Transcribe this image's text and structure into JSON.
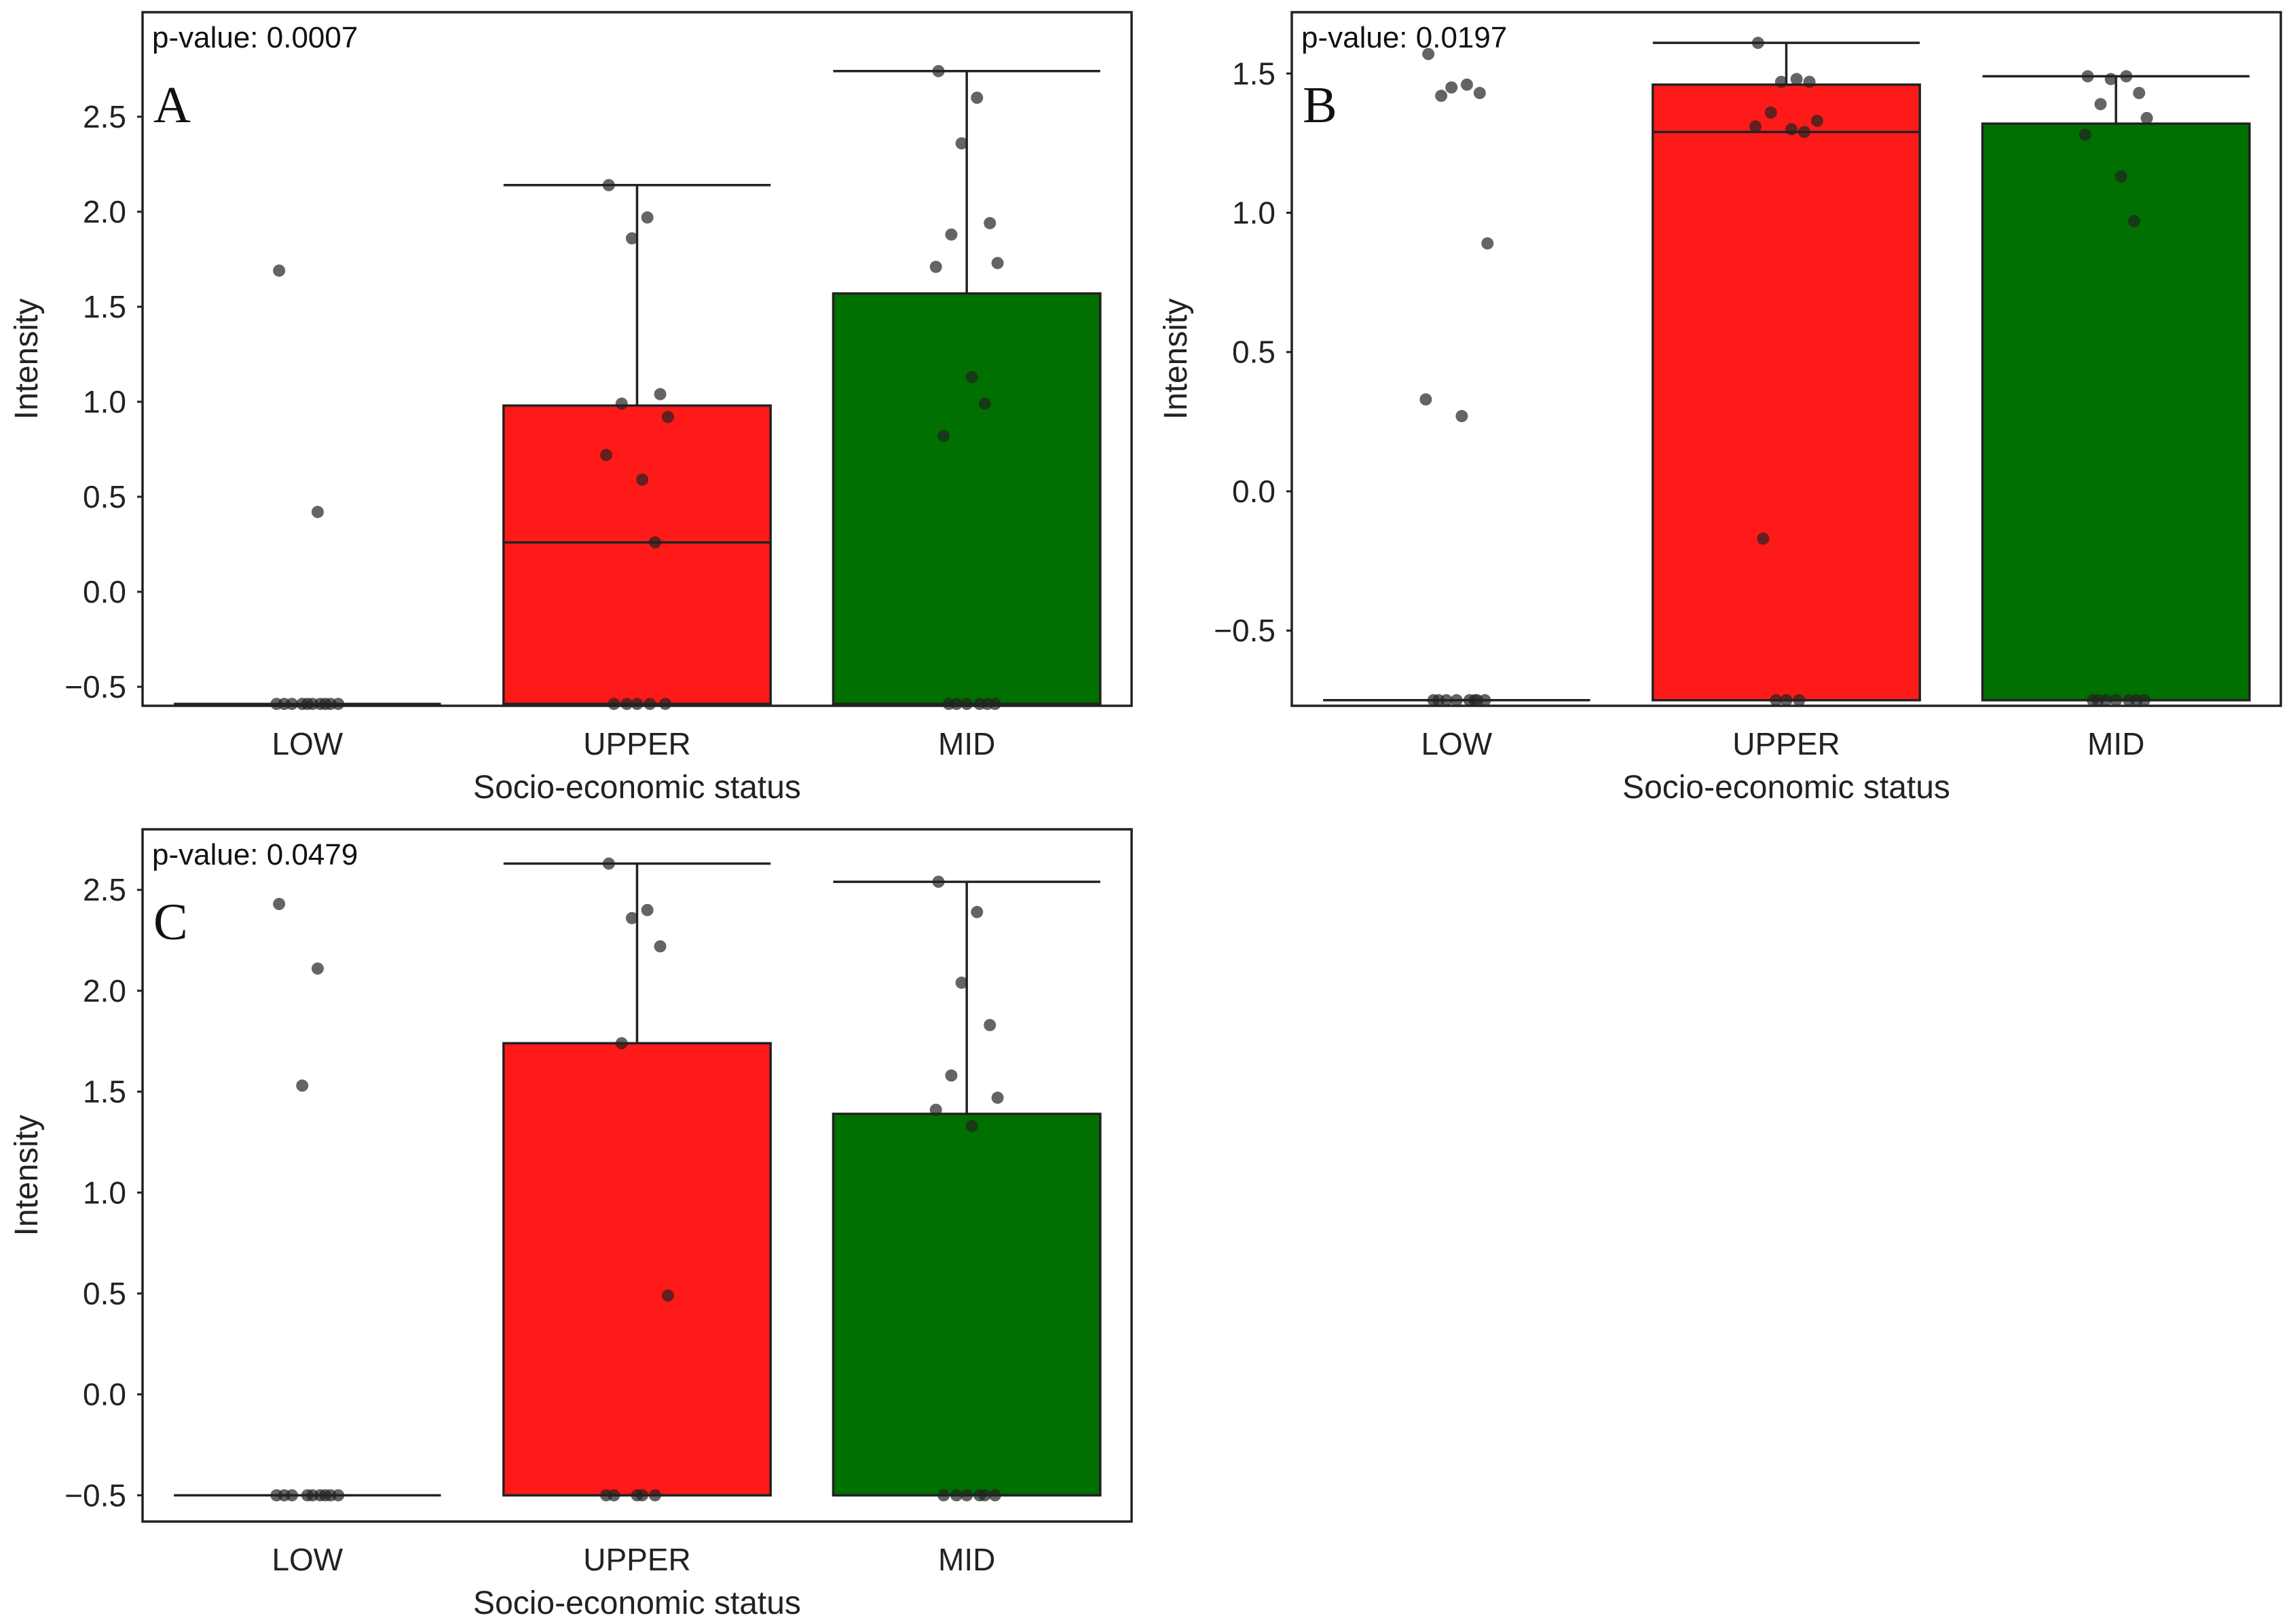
{
  "chart_data": [
    {
      "type": "box",
      "panel_label": "A",
      "annotation": "p-value: 0.0007",
      "xlabel": "Socio-economic status",
      "ylabel": "Intensity",
      "categories": [
        "LOW",
        "UPPER",
        "MID"
      ],
      "ylim": [
        -0.6,
        3.05
      ],
      "yticks": [
        -0.5,
        0.0,
        0.5,
        1.0,
        1.5,
        2.0,
        2.5
      ],
      "ytick_labels": [
        "−0.5",
        "0.0",
        "0.5",
        "1.0",
        "1.5",
        "2.0",
        "2.5"
      ],
      "boxes": [
        {
          "category": "LOW",
          "color": "#ff0000",
          "q1": -0.59,
          "median": -0.59,
          "q3": -0.59,
          "whisker_low": -0.59,
          "whisker_high": -0.59
        },
        {
          "category": "UPPER",
          "color": "#ff0000",
          "q1": -0.59,
          "median": 0.26,
          "q3": 0.98,
          "whisker_low": -0.59,
          "whisker_high": 2.14
        },
        {
          "category": "MID",
          "color": "#006400",
          "q1": -0.59,
          "median": -0.59,
          "q3": 1.57,
          "whisker_low": -0.59,
          "whisker_high": 2.74
        }
      ],
      "points": [
        {
          "category": "LOW",
          "values": [
            1.69,
            0.42,
            -0.59,
            -0.59,
            -0.59,
            -0.59,
            -0.59,
            -0.59,
            -0.59,
            -0.59,
            -0.59,
            -0.59
          ]
        },
        {
          "category": "UPPER",
          "values": [
            2.14,
            1.97,
            1.86,
            1.04,
            0.99,
            0.92,
            0.72,
            0.59,
            0.26,
            -0.59,
            -0.59,
            -0.59,
            -0.59,
            -0.59
          ]
        },
        {
          "category": "MID",
          "values": [
            2.74,
            2.6,
            2.36,
            1.94,
            1.88,
            1.73,
            1.71,
            1.13,
            0.99,
            0.82,
            -0.59,
            -0.59,
            -0.59,
            -0.59,
            -0.59,
            -0.59
          ]
        }
      ]
    },
    {
      "type": "box",
      "panel_label": "B",
      "annotation": "p-value: 0.0197",
      "xlabel": "Socio-economic status",
      "ylabel": "Intensity",
      "categories": [
        "LOW",
        "UPPER",
        "MID"
      ],
      "ylim": [
        -0.77,
        1.72
      ],
      "yticks": [
        -0.5,
        0.0,
        0.5,
        1.0,
        1.5
      ],
      "ytick_labels": [
        "−0.5",
        "0.0",
        "0.5",
        "1.0",
        "1.5"
      ],
      "boxes": [
        {
          "category": "LOW",
          "color": "#ff0000",
          "q1": -0.75,
          "median": -0.75,
          "q3": -0.75,
          "whisker_low": -0.75,
          "whisker_high": -0.75
        },
        {
          "category": "UPPER",
          "color": "#ff0000",
          "q1": -0.75,
          "median": 1.29,
          "q3": 1.46,
          "whisker_low": -0.75,
          "whisker_high": 1.61
        },
        {
          "category": "MID",
          "color": "#006400",
          "q1": -0.75,
          "median": -0.75,
          "q3": 1.32,
          "whisker_low": -0.75,
          "whisker_high": 1.49
        }
      ],
      "points": [
        {
          "category": "LOW",
          "values": [
            1.57,
            1.46,
            1.45,
            1.43,
            1.42,
            0.89,
            0.33,
            0.27,
            -0.75,
            -0.75,
            -0.75,
            -0.75,
            -0.75,
            -0.75,
            -0.75,
            -0.75
          ]
        },
        {
          "category": "UPPER",
          "values": [
            1.61,
            1.48,
            1.47,
            1.47,
            1.36,
            1.33,
            1.31,
            1.3,
            1.29,
            -0.17,
            -0.75,
            -0.75,
            -0.75
          ]
        },
        {
          "category": "MID",
          "values": [
            1.49,
            1.49,
            1.48,
            1.43,
            1.39,
            1.34,
            1.28,
            1.13,
            0.97,
            -0.75,
            -0.75,
            -0.75,
            -0.75,
            -0.75,
            -0.75,
            -0.75
          ]
        }
      ]
    },
    {
      "type": "box",
      "panel_label": "C",
      "annotation": "p-value: 0.0479",
      "xlabel": "Socio-economic status",
      "ylabel": "Intensity",
      "categories": [
        "LOW",
        "UPPER",
        "MID"
      ],
      "ylim": [
        -0.63,
        2.8
      ],
      "yticks": [
        -0.5,
        0.0,
        0.5,
        1.0,
        1.5,
        2.0,
        2.5
      ],
      "ytick_labels": [
        "−0.5",
        "0.0",
        "0.5",
        "1.0",
        "1.5",
        "2.0",
        "2.5"
      ],
      "boxes": [
        {
          "category": "LOW",
          "color": "#ff0000",
          "q1": -0.5,
          "median": -0.5,
          "q3": -0.5,
          "whisker_low": -0.5,
          "whisker_high": -0.5
        },
        {
          "category": "UPPER",
          "color": "#ff0000",
          "q1": -0.5,
          "median": -0.5,
          "q3": 1.74,
          "whisker_low": -0.5,
          "whisker_high": 2.63
        },
        {
          "category": "MID",
          "color": "#006400",
          "q1": -0.5,
          "median": -0.5,
          "q3": 1.39,
          "whisker_low": -0.5,
          "whisker_high": 2.54
        }
      ],
      "points": [
        {
          "category": "LOW",
          "values": [
            2.43,
            2.11,
            1.53,
            -0.5,
            -0.5,
            -0.5,
            -0.5,
            -0.5,
            -0.5,
            -0.5,
            -0.5,
            -0.5
          ]
        },
        {
          "category": "UPPER",
          "values": [
            2.63,
            2.4,
            2.36,
            2.22,
            1.74,
            0.49,
            -0.5,
            -0.5,
            -0.5,
            -0.5,
            -0.5
          ]
        },
        {
          "category": "MID",
          "values": [
            2.54,
            2.39,
            2.04,
            1.83,
            1.58,
            1.47,
            1.41,
            1.33,
            -0.5,
            -0.5,
            -0.5,
            -0.5,
            -0.5,
            -0.5
          ]
        }
      ]
    }
  ],
  "colors": {
    "upper_box": "#ff1a1a",
    "mid_box": "#007000",
    "point": "#222222",
    "frame": "#222222"
  }
}
